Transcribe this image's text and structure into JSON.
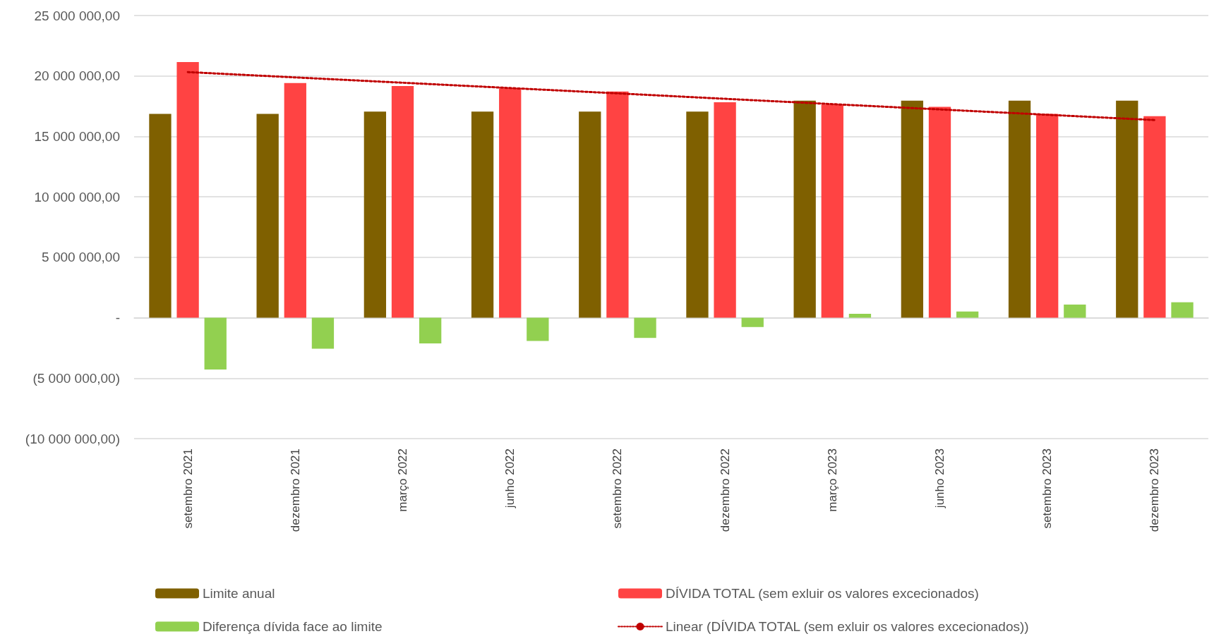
{
  "chart_data": {
    "type": "bar",
    "categories": [
      "setembro 2021",
      "dezembro 2021",
      "março 2022",
      "junho 2022",
      "setembro 2022",
      "dezembro 2022",
      "março 2023",
      "junho 2023",
      "setembro 2023",
      "dezembro 2023"
    ],
    "series": [
      {
        "name": "Limite anual",
        "color": "#7f6000",
        "values": [
          16860000,
          16860000,
          17050000,
          17050000,
          17050000,
          17050000,
          17950000,
          17950000,
          17950000,
          17950000
        ]
      },
      {
        "name": "DÍVIDA TOTAL (sem exluir os valores excecionados)",
        "color": "#ff4343",
        "values": [
          21150000,
          19420000,
          19170000,
          18970000,
          18720000,
          17820000,
          17630000,
          17440000,
          16860000,
          16670000
        ]
      },
      {
        "name": "Diferença dívida face ao limite",
        "color": "#92d050",
        "values": [
          -4290000,
          -2560000,
          -2120000,
          -1920000,
          -1670000,
          -770000,
          320000,
          510000,
          1090000,
          1280000
        ]
      },
      {
        "name": "Linear (DÍVIDA TOTAL (sem exluir os valores excecionados))",
        "type": "line",
        "line_style": "dotted",
        "marker": "none",
        "color": "#c00000",
        "values": [
          20320000,
          19880000,
          19440000,
          19000000,
          18560000,
          18110000,
          17670000,
          17230000,
          16790000,
          16350000
        ]
      }
    ],
    "ylim": [
      -10000000,
      25000000
    ],
    "yticks": [
      {
        "value": -10000000,
        "label": "(10 000 000,00)"
      },
      {
        "value": -5000000,
        "label": "(5 000 000,00)"
      },
      {
        "value": 0,
        "label": "-"
      },
      {
        "value": 5000000,
        "label": "5 000 000,00"
      },
      {
        "value": 10000000,
        "label": "10 000 000,00"
      },
      {
        "value": 15000000,
        "label": "15 000 000,00"
      },
      {
        "value": 20000000,
        "label": "20 000 000,00"
      },
      {
        "value": 25000000,
        "label": "25 000 000,00"
      }
    ],
    "grid": "y",
    "legend": "bottom"
  }
}
